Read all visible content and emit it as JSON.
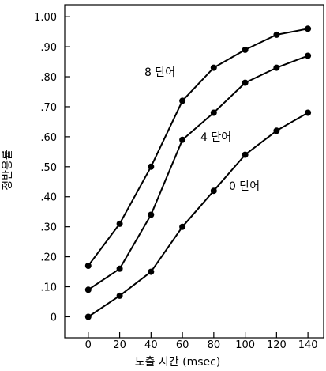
{
  "chart_data": {
    "type": "line",
    "title": "",
    "xlabel": "노출 시간 (msec)",
    "ylabel": "정반응률",
    "x": [
      0,
      20,
      40,
      60,
      80,
      100,
      120,
      140
    ],
    "xlim": [
      -15,
      150
    ],
    "ylim": [
      -0.07,
      1.04
    ],
    "x_ticks": [
      0,
      20,
      40,
      60,
      80,
      100,
      120,
      140
    ],
    "x_tick_labels": [
      "0",
      "20",
      "40",
      "60",
      "80",
      "100",
      "120",
      "140"
    ],
    "y_ticks": [
      0,
      0.1,
      0.2,
      0.3,
      0.4,
      0.5,
      0.6,
      0.7,
      0.8,
      0.9,
      1.0
    ],
    "y_tick_labels": [
      "0",
      ".10",
      ".20",
      ".30",
      ".40",
      ".50",
      ".60",
      ".70",
      ".80",
      ".90",
      "1.00"
    ],
    "grid": false,
    "legend": "none",
    "series": [
      {
        "label": "8 단어",
        "values": [
          0.17,
          0.31,
          0.5,
          0.72,
          0.83,
          0.89,
          0.94,
          0.96
        ],
        "color": "#000000"
      },
      {
        "label": "4 단어",
        "values": [
          0.09,
          0.16,
          0.34,
          0.59,
          0.68,
          0.78,
          0.83,
          0.87
        ],
        "color": "#000000"
      },
      {
        "label": "0 단어",
        "values": [
          0.0,
          0.07,
          0.15,
          0.3,
          0.42,
          0.54,
          0.62,
          0.68
        ],
        "color": "#000000"
      }
    ]
  }
}
